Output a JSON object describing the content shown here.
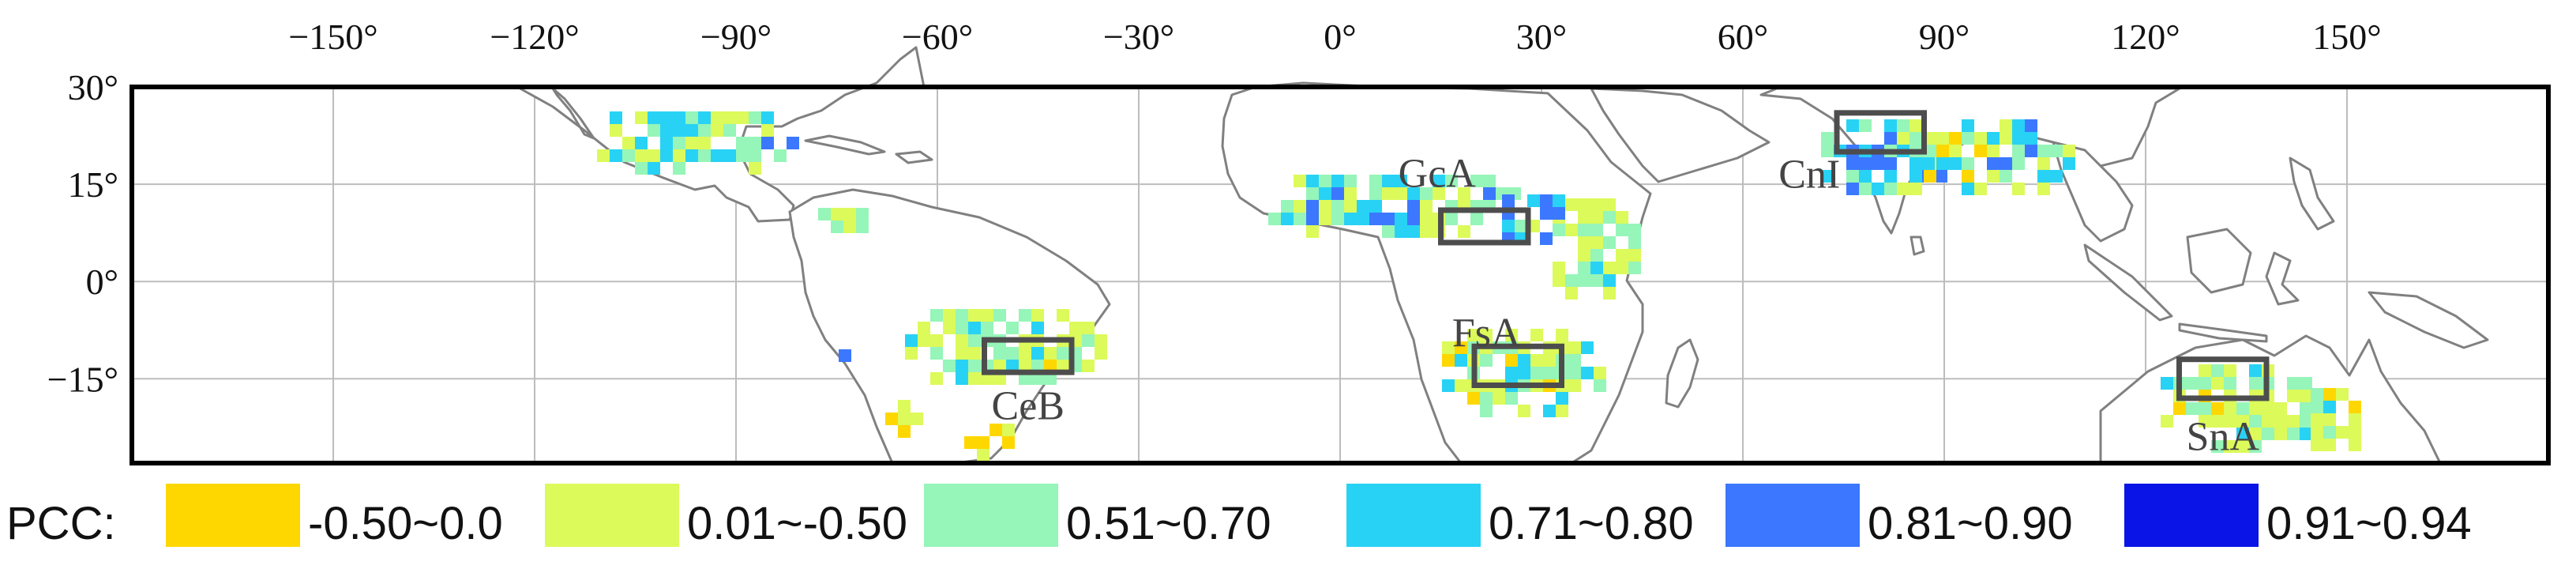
{
  "map": {
    "longitude_ticks": [
      {
        "value": -150,
        "label": "−150°"
      },
      {
        "value": -120,
        "label": "−120°"
      },
      {
        "value": -90,
        "label": "−90°"
      },
      {
        "value": -60,
        "label": "−60°"
      },
      {
        "value": -30,
        "label": "−30°"
      },
      {
        "value": 0,
        "label": "0°"
      },
      {
        "value": 30,
        "label": "30°"
      },
      {
        "value": 60,
        "label": "60°"
      },
      {
        "value": 90,
        "label": "90°"
      },
      {
        "value": 120,
        "label": "120°"
      },
      {
        "value": 150,
        "label": "150°"
      }
    ],
    "latitude_ticks": [
      {
        "value": 30,
        "label": "30°"
      },
      {
        "value": 15,
        "label": "15°"
      },
      {
        "value": 0,
        "label": "0°"
      },
      {
        "value": -15,
        "label": "−15°"
      }
    ],
    "extent": {
      "lon": [
        -180,
        180
      ],
      "lat": [
        -28,
        30
      ]
    },
    "grid": true,
    "regions": [
      {
        "name": "CeB",
        "lon": [
          -53,
          -40
        ],
        "lat": [
          -14,
          -9
        ]
      },
      {
        "name": "GcA",
        "lon": [
          15,
          28
        ],
        "lat": [
          6,
          11
        ]
      },
      {
        "name": "FsA",
        "lon": [
          20,
          33
        ],
        "lat": [
          -16,
          -10
        ]
      },
      {
        "name": "CnI",
        "lon": [
          74,
          87
        ],
        "lat": [
          20,
          26
        ]
      },
      {
        "name": "SnA",
        "lon": [
          125,
          138
        ],
        "lat": [
          -18,
          -12
        ]
      }
    ]
  },
  "legend": {
    "title": "PCC:",
    "items": [
      {
        "label": "-0.50~0.0",
        "color": "#ffd700"
      },
      {
        "label": "0.01~-0.50",
        "color": "#dcfa5a"
      },
      {
        "label": "0.51~0.70",
        "color": "#96f5b9"
      },
      {
        "label": "0.71~0.80",
        "color": "#28d2f5"
      },
      {
        "label": "0.81~0.90",
        "color": "#3c78ff"
      },
      {
        "label": "0.91~0.94",
        "color": "#0a14e6"
      }
    ]
  }
}
